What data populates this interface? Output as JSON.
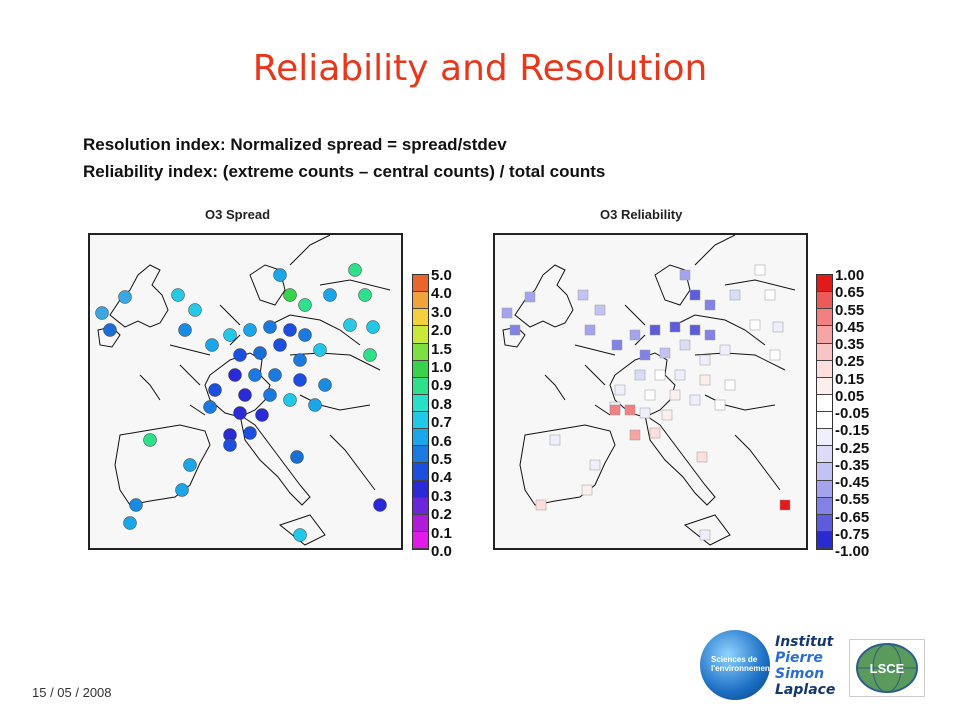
{
  "slide": {
    "title": "Reliability and Resolution",
    "line1": "Resolution index: Normalized spread = spread/stdev",
    "line2": "Reliability index: (extreme counts – central counts) / total counts",
    "date": "15 / 05 / 2008"
  },
  "left_panel": {
    "title": "O3 Spread",
    "ticks": [
      "5.0",
      "4.0",
      "3.0",
      "2.0",
      "1.5",
      "1.0",
      "0.9",
      "0.8",
      "0.7",
      "0.6",
      "0.5",
      "0.4",
      "0.3",
      "0.2",
      "0.1",
      "0.0"
    ],
    "colors": [
      "#e8652b",
      "#f2a23a",
      "#f4d03f",
      "#c8e83a",
      "#7be040",
      "#38d24b",
      "#2ee08a",
      "#28e0c8",
      "#22c8e8",
      "#1aa6e8",
      "#1a7ae0",
      "#1c4ee0",
      "#2a2ad8",
      "#6a26d8",
      "#b01ad8",
      "#e01ae8"
    ]
  },
  "right_panel": {
    "title": "O3 Reliability",
    "ticks": [
      "1.00",
      "0.65",
      "0.55",
      "0.45",
      "0.35",
      "0.25",
      "0.15",
      "0.05",
      "-0.05",
      "-0.15",
      "-0.25",
      "-0.35",
      "-0.45",
      "-0.55",
      "-0.65",
      "-0.75",
      "-1.00"
    ],
    "colors": [
      "#e21a1a",
      "#ec5a5a",
      "#f28080",
      "#f6a4a4",
      "#f9c4c4",
      "#fcdede",
      "#fdeeee",
      "#ffffff",
      "#ffffff",
      "#eeeefc",
      "#dcdcf8",
      "#c2c2f4",
      "#a4a4ee",
      "#8282e6",
      "#5c5cdc",
      "#2a2ad2"
    ]
  },
  "logos": {
    "circle_label": "Sciences de l'environnement",
    "ipsl_lines": [
      "Institut",
      "Pierre",
      "Simon",
      "Laplace"
    ],
    "lsce": "LSCE"
  }
}
